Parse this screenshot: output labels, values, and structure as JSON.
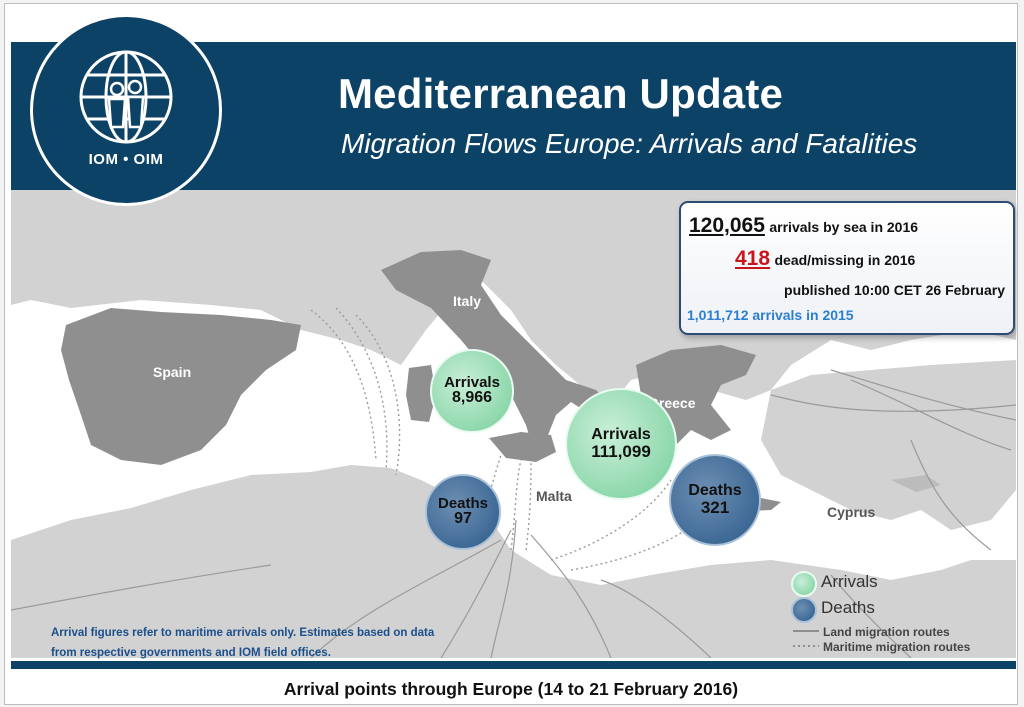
{
  "header": {
    "logo_text": "IOM • OIM",
    "title": "Mediterranean Update",
    "subtitle": "Migration Flows Europe: Arrivals and Fatalities"
  },
  "stats": {
    "arrivals_2016_value": "120,065",
    "arrivals_2016_label": "arrivals by sea in 2016",
    "dead_missing_value": "418",
    "dead_missing_label": "dead/missing in 2016",
    "published": "published 10:00 CET 26 February",
    "arrivals_2015": "1,011,712 arrivals in 2015"
  },
  "map": {
    "country_labels": {
      "spain": "Spain",
      "italy": "Italy",
      "greece": "Greece",
      "malta": "Malta",
      "cyprus": "Cyprus"
    },
    "bubbles": [
      {
        "id": "italy-arrivals",
        "kind": "Arrivals",
        "value": "8,966",
        "numeric": 8966
      },
      {
        "id": "greece-arrivals",
        "kind": "Arrivals",
        "value": "111,099",
        "numeric": 111099
      },
      {
        "id": "central-med-deaths",
        "kind": "Deaths",
        "value": "97",
        "numeric": 97
      },
      {
        "id": "aegean-deaths",
        "kind": "Deaths",
        "value": "321",
        "numeric": 321
      }
    ]
  },
  "legend": {
    "arrivals": "Arrivals",
    "deaths": "Deaths",
    "land_routes": "Land migration routes",
    "maritime_routes": "Maritime migration routes"
  },
  "footnote": {
    "line1": "Arrival figures  refer to maritime arrivals only. Estimates based on data",
    "line2": "from respective governments and IOM field offices."
  },
  "footer": {
    "caption": "Arrival points through Europe (14 to 21 February 2016)"
  },
  "colors": {
    "header_blue": "#0c4266",
    "sea": "#ffffff",
    "land": "#d2d2d2",
    "highlight_land": "#8f8f8f",
    "arrivals_green": "#8fd8ad",
    "deaths_blue": "#3f6a96",
    "dead_red": "#c8161d",
    "arrivals_2015_blue": "#2b7fd0"
  }
}
